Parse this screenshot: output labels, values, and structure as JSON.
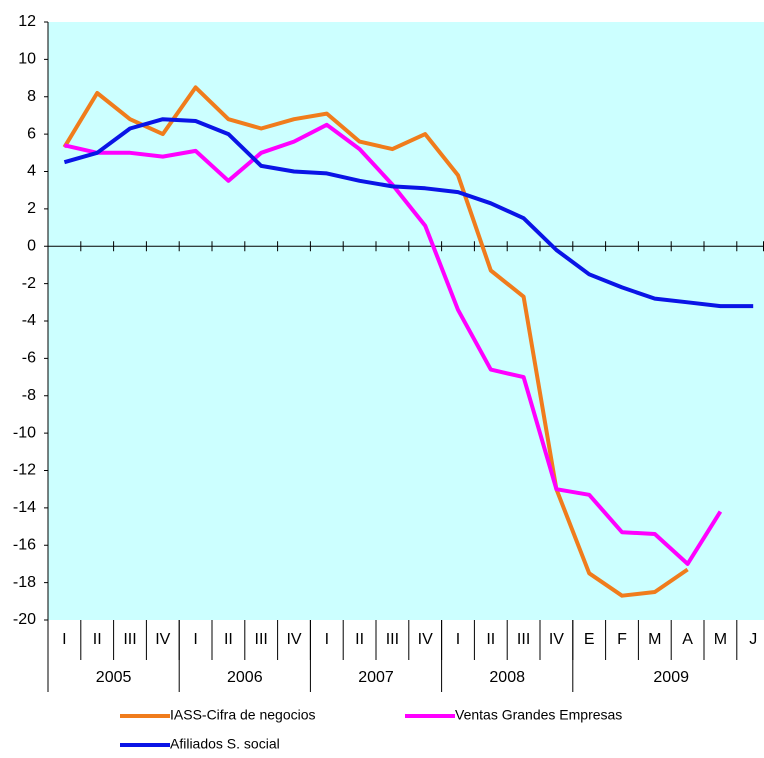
{
  "chart_data": {
    "type": "line",
    "categories": [
      "I",
      "II",
      "III",
      "IV",
      "I",
      "II",
      "III",
      "IV",
      "I",
      "II",
      "III",
      "IV",
      "I",
      "II",
      "III",
      "IV",
      "E",
      "F",
      "M",
      "A",
      "M",
      "J"
    ],
    "category_groups": [
      "2005",
      "2006",
      "2007",
      "2008",
      "2009"
    ],
    "group_spans": [
      4,
      4,
      4,
      4,
      6
    ],
    "ylim": [
      -20,
      12
    ],
    "yticks": [
      -20,
      -18,
      -16,
      -14,
      -12,
      -10,
      -8,
      -6,
      -4,
      -2,
      0,
      2,
      4,
      6,
      8,
      10,
      12
    ],
    "background": "#ccffff",
    "series": [
      {
        "name": "IASS-Cifra de negocios",
        "color": "#f07c1c",
        "values": [
          5.3,
          8.2,
          6.8,
          6.0,
          8.5,
          6.8,
          6.3,
          6.8,
          7.1,
          5.6,
          5.2,
          6.0,
          3.8,
          -1.3,
          -2.7,
          -13.0,
          -17.5,
          -18.7,
          -18.5,
          -17.3,
          null,
          null
        ]
      },
      {
        "name": "Ventas Grandes Empresas",
        "color": "#ff00ff",
        "values": [
          5.4,
          5.0,
          5.0,
          4.8,
          5.1,
          3.5,
          5.0,
          5.6,
          6.5,
          5.2,
          3.3,
          1.1,
          -3.4,
          -6.6,
          -7.0,
          -13.0,
          -13.3,
          -15.3,
          -15.4,
          -17.0,
          -14.2,
          null
        ]
      },
      {
        "name": "Afiliados S. social",
        "color": "#0a14e6",
        "values": [
          4.5,
          5.0,
          6.3,
          6.8,
          6.7,
          6.0,
          4.3,
          4.0,
          3.9,
          3.5,
          3.2,
          3.1,
          2.9,
          2.3,
          1.5,
          -0.2,
          -1.5,
          -2.2,
          -2.8,
          -3.0,
          -3.2,
          -3.2
        ]
      }
    ]
  }
}
